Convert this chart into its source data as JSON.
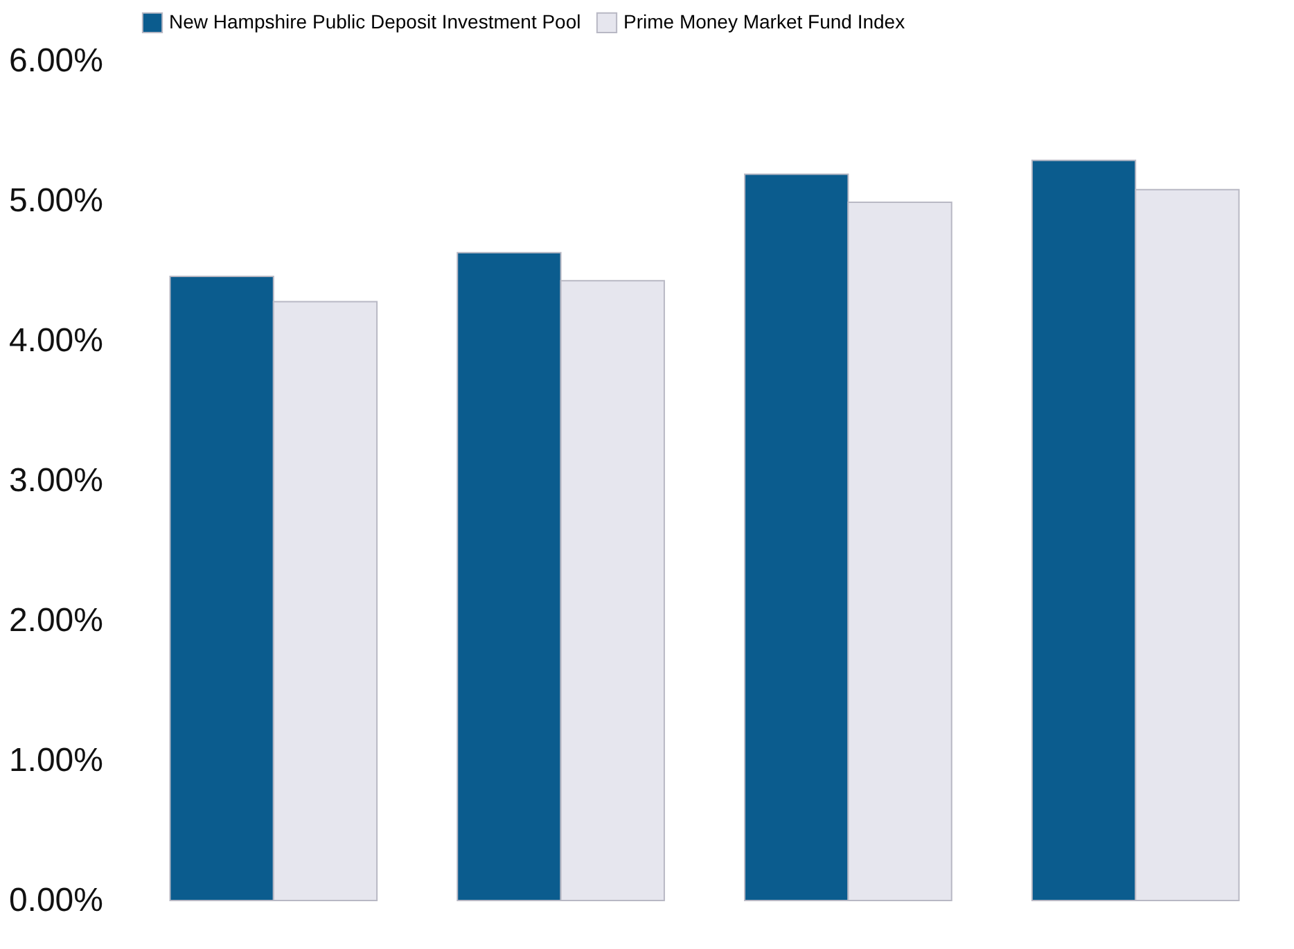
{
  "chart_data": {
    "type": "bar",
    "categories": [
      null,
      null,
      null,
      null
    ],
    "series": [
      {
        "name": "New Hampshire Public Deposit Investment Pool",
        "color": "#0b5c8e",
        "values": [
          4.46,
          4.63,
          5.19,
          5.29
        ]
      },
      {
        "name": "Prime Money Market Fund Index",
        "color": "#e6e6ee",
        "values": [
          4.28,
          4.43,
          4.99,
          5.08
        ]
      }
    ],
    "ylim": [
      0,
      6
    ],
    "yticks": [
      {
        "value": 0,
        "label": "0.00%"
      },
      {
        "value": 1,
        "label": "1.00%"
      },
      {
        "value": 2,
        "label": "2.00%"
      },
      {
        "value": 3,
        "label": "3.00%"
      },
      {
        "value": 4,
        "label": "4.00%"
      },
      {
        "value": 5,
        "label": "5.00%"
      },
      {
        "value": 6,
        "label": "6.00%"
      }
    ],
    "legend": "top",
    "grid": false,
    "tick_labels": "y"
  }
}
